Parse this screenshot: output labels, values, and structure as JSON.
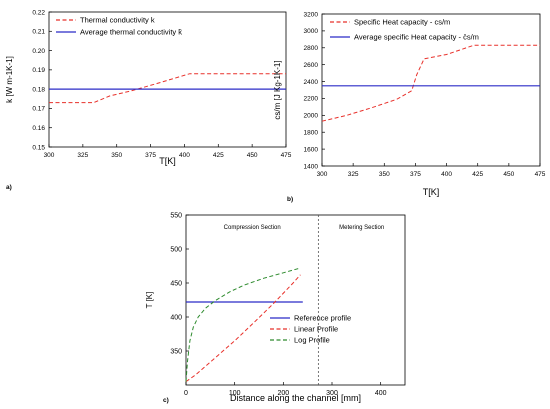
{
  "chart_data": [
    {
      "type": "line",
      "panel_label": "a)",
      "xlabel": "T[K]",
      "ylabel": "k [W m-1K-1]",
      "xlim": [
        300,
        475
      ],
      "ylim": [
        0.15,
        0.22
      ],
      "x_ticks": [
        "300",
        "325",
        "350",
        "375",
        "400",
        "425",
        "450",
        "475"
      ],
      "y_ticks": [
        "0.15",
        "0.16",
        "0.17",
        "0.18",
        "0.19",
        "0.20",
        "0.21",
        "0.22"
      ],
      "grid": false,
      "legend_position": "top-left",
      "series": [
        {
          "name": "Thermal conductivity k",
          "style": "dashed",
          "color": "#e8302a",
          "x": [
            300,
            333,
            345,
            360,
            380,
            404,
            475
          ],
          "y": [
            0.173,
            0.173,
            0.1765,
            0.179,
            0.183,
            0.188,
            0.188
          ]
        },
        {
          "name": "Average thermal conductivity k̄",
          "style": "solid",
          "color": "#2b2bc7",
          "x": [
            300,
            475
          ],
          "y": [
            0.18,
            0.18
          ]
        }
      ]
    },
    {
      "type": "line",
      "panel_label": "b)",
      "xlabel": "T[K]",
      "ylabel": "cs/m [J Kg-1K-1]",
      "xlim": [
        300,
        475
      ],
      "ylim": [
        1400,
        3200
      ],
      "x_ticks": [
        "300",
        "325",
        "350",
        "375",
        "400",
        "425",
        "450",
        "475"
      ],
      "y_ticks": [
        "1400",
        "1600",
        "1800",
        "2000",
        "2200",
        "2400",
        "2600",
        "2800",
        "3000",
        "3200"
      ],
      "grid": false,
      "legend_position": "top-left",
      "series": [
        {
          "name": "Specific Heat capacity - cs/m",
          "style": "dashed",
          "color": "#e8302a",
          "x": [
            300,
            320,
            340,
            360,
            372,
            376,
            382,
            400,
            422,
            475
          ],
          "y": [
            1930,
            2000,
            2090,
            2190,
            2290,
            2480,
            2670,
            2720,
            2830,
            2830
          ]
        },
        {
          "name": "Average specific Heat capacity - c̄s/m",
          "style": "solid",
          "color": "#2b2bc7",
          "x": [
            300,
            475
          ],
          "y": [
            2350,
            2350
          ]
        }
      ]
    },
    {
      "type": "line",
      "panel_label": "c)",
      "xlabel": "Distance along the channel [mm]",
      "ylabel": "T [K]",
      "xlim": [
        0,
        450
      ],
      "ylim": [
        300,
        550
      ],
      "x_ticks": [
        "0",
        "100",
        "200",
        "300",
        "400"
      ],
      "y_ticks": [
        "350",
        "400",
        "450",
        "500",
        "550"
      ],
      "grid": false,
      "legend_position": "center-right",
      "annotations": [
        "Compression Section",
        "Metering Section"
      ],
      "section_divider_x": 272,
      "series": [
        {
          "name": "Reference profile",
          "style": "solid",
          "color": "#2b2bc7",
          "x": [
            0,
            240
          ],
          "y": [
            422,
            422
          ]
        },
        {
          "name": "Linear Profile",
          "style": "dashed",
          "color": "#e8302a",
          "x": [
            0,
            20,
            60,
            100,
            140,
            180,
            220,
            235
          ],
          "y": [
            305,
            315,
            340,
            365,
            392,
            420,
            450,
            462
          ]
        },
        {
          "name": "Log Profile",
          "style": "dashed",
          "color": "#2e8b2e",
          "x": [
            0,
            3,
            8,
            15,
            25,
            40,
            60,
            90,
            120,
            160,
            200,
            235
          ],
          "y": [
            305,
            335,
            365,
            385,
            400,
            413,
            424,
            437,
            447,
            457,
            465,
            472
          ]
        }
      ]
    }
  ]
}
